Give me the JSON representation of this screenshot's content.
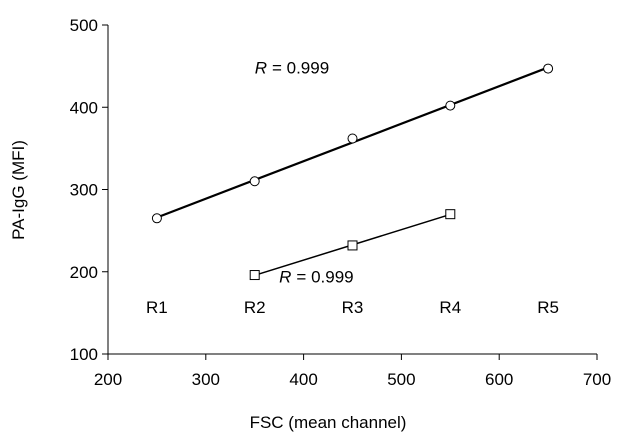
{
  "chart_data": {
    "type": "scatter",
    "xlabel": "FSC (mean channel)",
    "ylabel": "PA-IgG (MFI)",
    "xlim": [
      200,
      700
    ],
    "ylim": [
      100,
      500
    ],
    "x_ticks": [
      200,
      300,
      400,
      500,
      600,
      700
    ],
    "y_ticks": [
      100,
      200,
      300,
      400,
      500
    ],
    "grid": false,
    "series": [
      {
        "marker": "circle",
        "x": [
          250,
          350,
          450,
          550,
          650
        ],
        "y": [
          265,
          310,
          362,
          402,
          447
        ],
        "fit_line": true,
        "annotation": {
          "prefix": "R",
          "value": "= 0.999",
          "x": 350,
          "y": 441
        }
      },
      {
        "marker": "square",
        "x": [
          350,
          450,
          550
        ],
        "y": [
          196,
          232,
          270
        ],
        "fit_line": true,
        "annotation": {
          "prefix": "R",
          "value": "= 0.999",
          "x": 375,
          "y": 187
        }
      }
    ],
    "region_labels": [
      {
        "text": "R1",
        "x": 250,
        "y": 150
      },
      {
        "text": "R2",
        "x": 350,
        "y": 150
      },
      {
        "text": "R3",
        "x": 450,
        "y": 150
      },
      {
        "text": "R4",
        "x": 550,
        "y": 150
      },
      {
        "text": "R5",
        "x": 650,
        "y": 150
      }
    ]
  }
}
